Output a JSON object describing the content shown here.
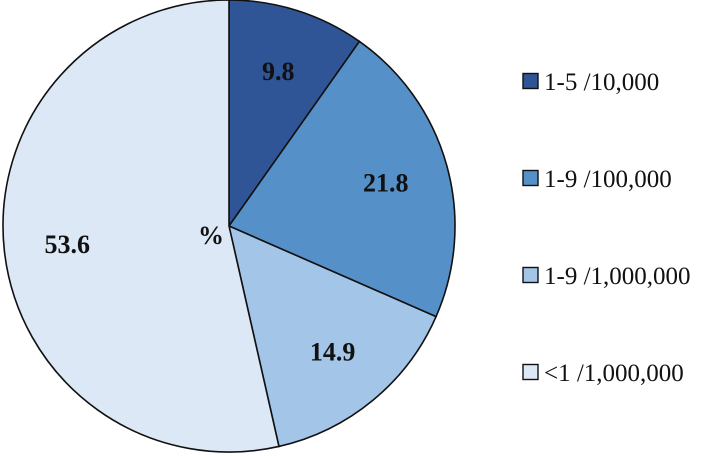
{
  "chart_data": {
    "type": "pie",
    "center_label": "%",
    "slices": [
      {
        "label": "1-5 /10,000",
        "value": 9.8,
        "value_text": "9.8",
        "color": "#2f5597"
      },
      {
        "label": "1-9 /100,000",
        "value": 21.8,
        "value_text": "21.8",
        "color": "#5591c8"
      },
      {
        "label": "1-9 /1,000,000",
        "value": 14.9,
        "value_text": "14.9",
        "color": "#a3c5e8"
      },
      {
        "label": "<1 /1,000,000",
        "value": 53.6,
        "value_text": "53.6",
        "color": "#dde8f6"
      }
    ],
    "legend_position": "right",
    "start_angle": "top",
    "direction": "clockwise"
  }
}
